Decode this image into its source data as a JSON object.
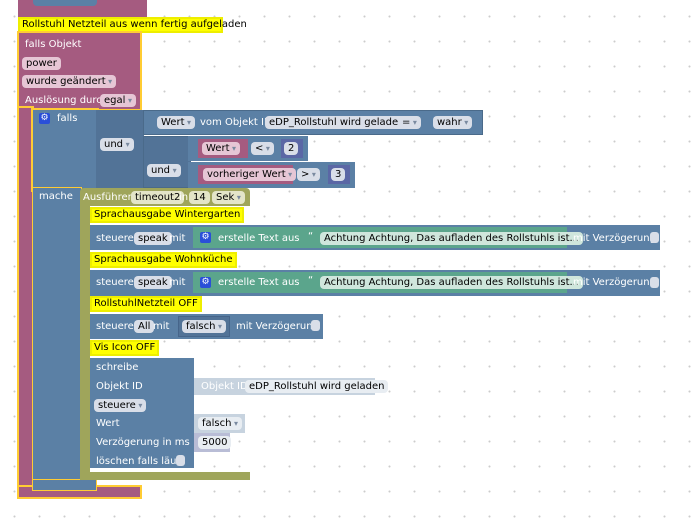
{
  "event": {
    "comment": "Rollstuhl Netzteil aus wenn fertig aufgeladen",
    "title": "falls Objekt",
    "object": "power",
    "condition": "wurde geändert",
    "trigger_label": "Auslösung durch",
    "trigger_value": "egal"
  },
  "if": {
    "label": "falls",
    "do_label": "mache",
    "and1": "und",
    "and2": "und",
    "cmp1": {
      "prop": "Wert",
      "of_label": "vom Objekt ID",
      "object": "eDP_Rollstuhl wird geladen",
      "op": "=",
      "value": "wahr"
    },
    "cmp2": {
      "prop": "Wert",
      "op": "<",
      "value": "2"
    },
    "cmp3": {
      "prop": "vorheriger Wert",
      "op": ">",
      "value": "3"
    }
  },
  "timeout": {
    "label": "Ausführen",
    "name": "timeout2",
    "in_label": "in",
    "value": "14",
    "unit": "Sek"
  },
  "actions": [
    {
      "comment": "Sprachausgabe Wintergarten",
      "control": "steuere",
      "target": "speak",
      "with": "mit",
      "text_label": "erstelle Text aus",
      "text": "Achtung Achtung, Das aufladen des Rollstuhls ist...",
      "delay": "mit Verzögerung"
    },
    {
      "comment": "Sprachausgabe Wohnküche",
      "control": "steuere",
      "target": "speak",
      "with": "mit",
      "text_label": "erstelle Text aus",
      "text": "Achtung Achtung, Das aufladen des Rollstuhls ist...",
      "delay": "mit Verzögerung"
    },
    {
      "comment": "RollstuhlNetzteil OFF",
      "control": "steuere",
      "target": "All",
      "with": "mit",
      "value": "falsch",
      "delay": "mit Verzögerung"
    }
  ],
  "write": {
    "comment": "Vis Icon OFF",
    "title": "schreibe",
    "obj_label": "Objekt ID",
    "obj_prefix": "Objekt ID",
    "object": "eDP_Rollstuhl wird geladen",
    "mode": "steuere",
    "value_label": "Wert",
    "value": "falsch",
    "delay_label": "Verzögerung in ms",
    "delay": "5000",
    "clear_label": "löschen falls läuft"
  },
  "colors": {
    "event": "#a55b80",
    "logic": "#5b80a5",
    "timeout": "#9fa55b",
    "text": "#5ba58c",
    "comment": "#ffff00"
  }
}
